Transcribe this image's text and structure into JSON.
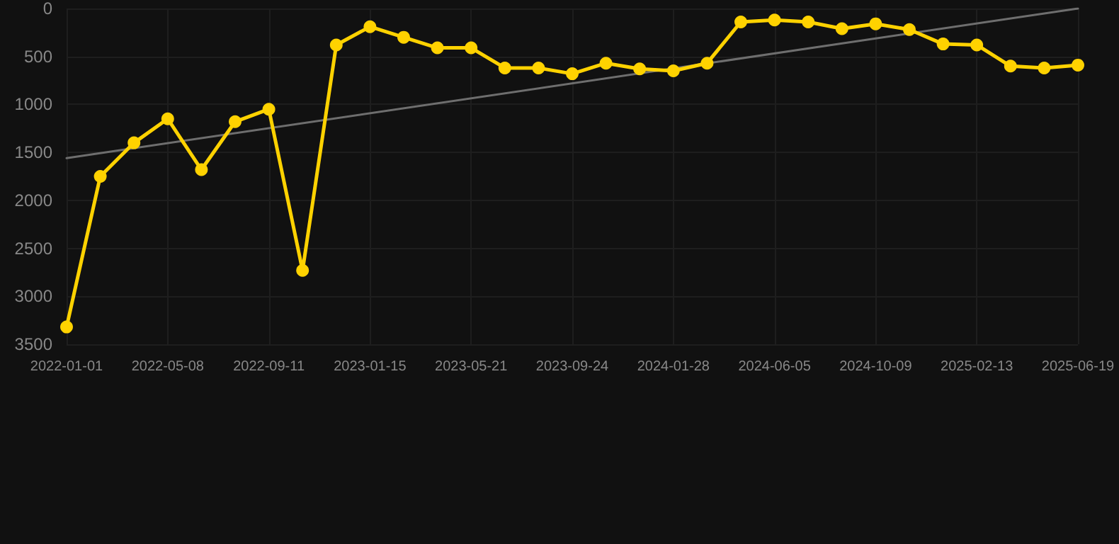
{
  "chart_data": {
    "type": "line",
    "categories": [
      "2022-01-01",
      null,
      null,
      "2022-05-08",
      null,
      null,
      "2022-09-11",
      null,
      null,
      "2023-01-15",
      null,
      null,
      "2023-05-21",
      null,
      null,
      "2023-09-24",
      null,
      null,
      "2024-01-28",
      null,
      null,
      "2024-06-05",
      null,
      null,
      "2024-10-09",
      null,
      null,
      "2025-02-13",
      null,
      null,
      "2025-06-19"
    ],
    "series": [
      {
        "color": "#ffd200",
        "values": [
          3320,
          1750,
          1400,
          1150,
          1680,
          1180,
          1050,
          2730,
          380,
          190,
          300,
          410,
          410,
          620,
          620,
          680,
          570,
          630,
          650,
          570,
          140,
          120,
          140,
          210,
          160,
          220,
          370,
          380,
          600,
          620,
          590
        ]
      },
      {
        "type": "line",
        "color": "#6e6e6e",
        "marker": "none",
        "values": [
          1560,
          null,
          null,
          null,
          null,
          null,
          null,
          null,
          null,
          null,
          null,
          null,
          null,
          null,
          null,
          null,
          null,
          null,
          null,
          null,
          null,
          null,
          null,
          null,
          null,
          null,
          null,
          null,
          null,
          null,
          0
        ]
      }
    ],
    "ylim": [
      3500,
      0
    ],
    "yticks": [
      0,
      500,
      1000,
      1500,
      2000,
      2500,
      3000,
      3500
    ],
    "grid": true,
    "marker": "circle",
    "line_style": "solid"
  }
}
